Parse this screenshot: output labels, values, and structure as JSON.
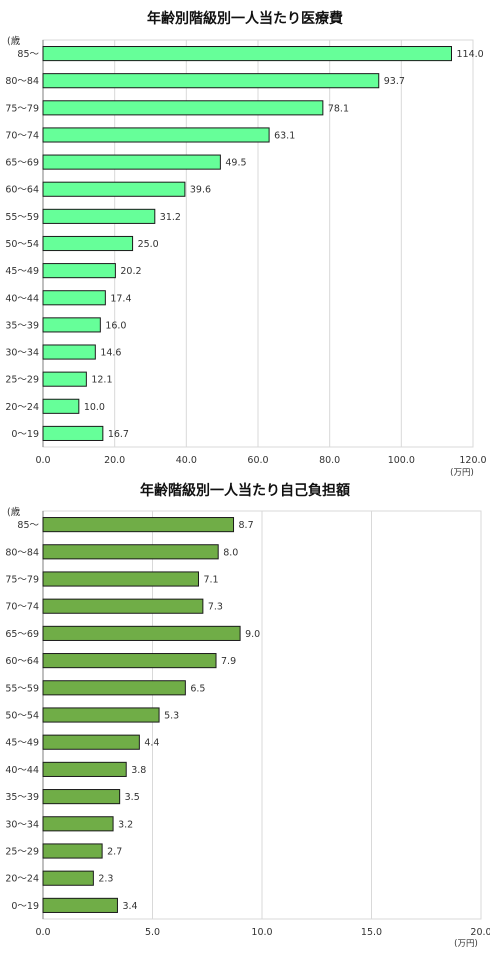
{
  "chart_data": [
    {
      "type": "bar",
      "orientation": "horizontal",
      "title": "年齢別階級別一人当たり医療費",
      "y_unit_label": "(歳",
      "x_unit_label": "(万円)",
      "categories": [
        "85～",
        "80～84",
        "75～79",
        "70～74",
        "65～69",
        "60～64",
        "55～59",
        "50～54",
        "45～49",
        "40～44",
        "35～39",
        "30～34",
        "25～29",
        "20～24",
        "0～19"
      ],
      "values": [
        114.0,
        93.7,
        78.1,
        63.1,
        49.5,
        39.6,
        31.2,
        25.0,
        20.2,
        17.4,
        16.0,
        14.6,
        12.1,
        10.0,
        16.7
      ],
      "value_labels": [
        "114.0",
        "93.7",
        "78.1",
        "63.1",
        "49.5",
        "39.6",
        "31.2",
        "25.0",
        "20.2",
        "17.4",
        "16.0",
        "14.6",
        "12.1",
        "10.0",
        "16.7"
      ],
      "xlim": [
        0,
        120
      ],
      "ticks": [
        0,
        20,
        40,
        60,
        80,
        100,
        120
      ],
      "tick_labels": [
        "0.0",
        "20.0",
        "40.0",
        "60.0",
        "80.0",
        "100.0",
        "120.0"
      ],
      "bar_color": "#66ff99",
      "grid": true
    },
    {
      "type": "bar",
      "orientation": "horizontal",
      "title": "年齢階級別一人当たり自己負担額",
      "y_unit_label": "(歳",
      "x_unit_label": "(万円)",
      "categories": [
        "85～",
        "80～84",
        "75～79",
        "70～74",
        "65～69",
        "60～64",
        "55～59",
        "50～54",
        "45～49",
        "40～44",
        "35～39",
        "30～34",
        "25～29",
        "20～24",
        "0～19"
      ],
      "values": [
        8.7,
        8.0,
        7.1,
        7.3,
        9.0,
        7.9,
        6.5,
        5.3,
        4.4,
        3.8,
        3.5,
        3.2,
        2.7,
        2.3,
        3.4
      ],
      "value_labels": [
        "8.7",
        "8.0",
        "7.1",
        "7.3",
        "9.0",
        "7.9",
        "6.5",
        "5.3",
        "4.4",
        "3.8",
        "3.5",
        "3.2",
        "2.7",
        "2.3",
        "3.4"
      ],
      "xlim": [
        0,
        20
      ],
      "ticks": [
        0,
        5,
        10,
        15,
        20
      ],
      "tick_labels": [
        "0.0",
        "5.0",
        "10.0",
        "15.0",
        "20.0"
      ],
      "bar_color": "#70ad47",
      "grid": true
    }
  ]
}
